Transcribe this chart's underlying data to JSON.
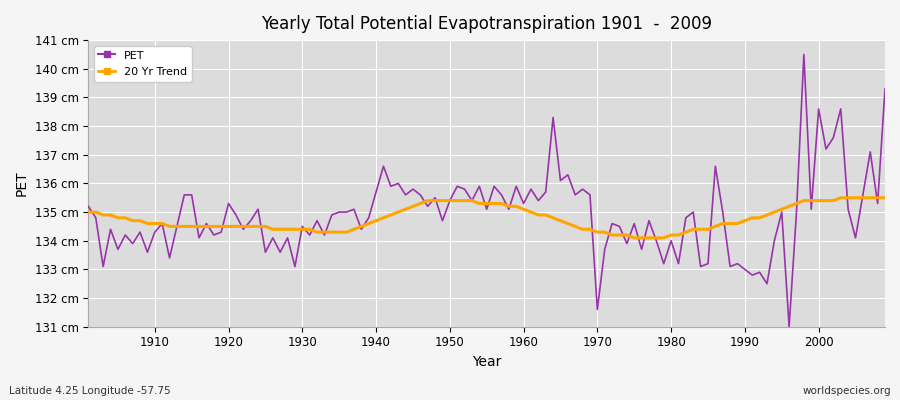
{
  "title": "Yearly Total Potential Evapotranspiration 1901  -  2009",
  "xlabel": "Year",
  "ylabel": "PET",
  "subtitle": "Latitude 4.25 Longitude -57.75",
  "watermark": "worldspecies.org",
  "ylim": [
    131,
    141
  ],
  "yticks": [
    131,
    132,
    133,
    134,
    135,
    136,
    137,
    138,
    139,
    140,
    141
  ],
  "ytick_labels": [
    "131 cm",
    "132 cm",
    "133 cm",
    "134 cm",
    "135 cm",
    "136 cm",
    "137 cm",
    "138 cm",
    "139 cm",
    "140 cm",
    "141 cm"
  ],
  "pet_color": "#9933aa",
  "trend_color": "#FFA500",
  "fig_bg_color": "#f5f5f5",
  "plot_bg_color": "#dcdcdc",
  "legend_labels": [
    "PET",
    "20 Yr Trend"
  ],
  "years": [
    1901,
    1902,
    1903,
    1904,
    1905,
    1906,
    1907,
    1908,
    1909,
    1910,
    1911,
    1912,
    1913,
    1914,
    1915,
    1916,
    1917,
    1918,
    1919,
    1920,
    1921,
    1922,
    1923,
    1924,
    1925,
    1926,
    1927,
    1928,
    1929,
    1930,
    1931,
    1932,
    1933,
    1934,
    1935,
    1936,
    1937,
    1938,
    1939,
    1940,
    1941,
    1942,
    1943,
    1944,
    1945,
    1946,
    1947,
    1948,
    1949,
    1950,
    1951,
    1952,
    1953,
    1954,
    1955,
    1956,
    1957,
    1958,
    1959,
    1960,
    1961,
    1962,
    1963,
    1964,
    1965,
    1966,
    1967,
    1968,
    1969,
    1970,
    1971,
    1972,
    1973,
    1974,
    1975,
    1976,
    1977,
    1978,
    1979,
    1980,
    1981,
    1982,
    1983,
    1984,
    1985,
    1986,
    1987,
    1988,
    1989,
    1990,
    1991,
    1992,
    1993,
    1994,
    1995,
    1996,
    1997,
    1998,
    1999,
    2000,
    2001,
    2002,
    2003,
    2004,
    2005,
    2006,
    2007,
    2008,
    2009
  ],
  "pet_values": [
    135.2,
    134.8,
    133.1,
    134.4,
    133.7,
    134.2,
    133.9,
    134.3,
    133.6,
    134.3,
    134.6,
    133.4,
    134.5,
    135.6,
    135.6,
    134.1,
    134.6,
    134.2,
    134.3,
    135.3,
    134.9,
    134.4,
    134.7,
    135.1,
    133.6,
    134.1,
    133.6,
    134.1,
    133.1,
    134.5,
    134.2,
    134.7,
    134.2,
    134.9,
    135.0,
    135.0,
    135.1,
    134.4,
    134.8,
    135.7,
    136.6,
    135.9,
    136.0,
    135.6,
    135.8,
    135.6,
    135.2,
    135.5,
    134.7,
    135.4,
    135.9,
    135.8,
    135.4,
    135.9,
    135.1,
    135.9,
    135.6,
    135.1,
    135.9,
    135.3,
    135.8,
    135.4,
    135.7,
    138.3,
    136.1,
    136.3,
    135.6,
    135.8,
    135.6,
    131.6,
    133.7,
    134.6,
    134.5,
    133.9,
    134.6,
    133.7,
    134.7,
    134.0,
    133.2,
    134.0,
    133.2,
    134.8,
    135.0,
    133.1,
    133.2,
    136.6,
    135.0,
    133.1,
    133.2,
    133.0,
    132.8,
    132.9,
    132.5,
    134.0,
    135.0,
    131.0,
    135.0,
    140.5,
    135.1,
    138.6,
    137.2,
    137.6,
    138.6,
    135.1,
    134.1,
    135.6,
    137.1,
    135.3,
    139.3
  ],
  "trend_values": [
    135.0,
    135.0,
    134.9,
    134.9,
    134.8,
    134.8,
    134.7,
    134.7,
    134.6,
    134.6,
    134.6,
    134.5,
    134.5,
    134.5,
    134.5,
    134.5,
    134.5,
    134.5,
    134.5,
    134.5,
    134.5,
    134.5,
    134.5,
    134.5,
    134.5,
    134.4,
    134.4,
    134.4,
    134.4,
    134.4,
    134.4,
    134.3,
    134.3,
    134.3,
    134.3,
    134.3,
    134.4,
    134.5,
    134.6,
    134.7,
    134.8,
    134.9,
    135.0,
    135.1,
    135.2,
    135.3,
    135.4,
    135.4,
    135.4,
    135.4,
    135.4,
    135.4,
    135.4,
    135.3,
    135.3,
    135.3,
    135.3,
    135.2,
    135.2,
    135.1,
    135.0,
    134.9,
    134.9,
    134.8,
    134.7,
    134.6,
    134.5,
    134.4,
    134.4,
    134.3,
    134.3,
    134.2,
    134.2,
    134.2,
    134.1,
    134.1,
    134.1,
    134.1,
    134.1,
    134.2,
    134.2,
    134.3,
    134.4,
    134.4,
    134.4,
    134.5,
    134.6,
    134.6,
    134.6,
    134.7,
    134.8,
    134.8,
    134.9,
    135.0,
    135.1,
    135.2,
    135.3,
    135.4,
    135.4,
    135.4,
    135.4,
    135.4,
    135.5,
    135.5,
    135.5,
    135.5,
    135.5,
    135.5,
    135.5
  ]
}
